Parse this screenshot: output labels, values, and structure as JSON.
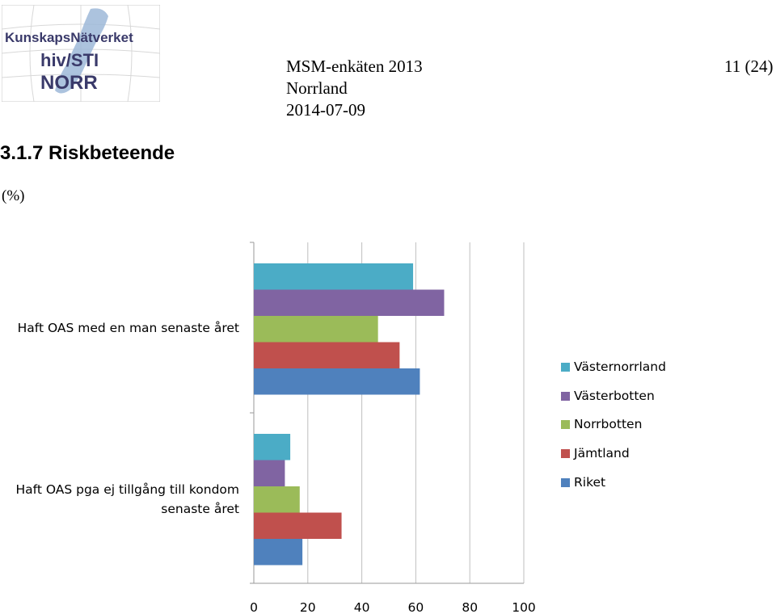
{
  "logo": {
    "line1": "KunskapsNätverket",
    "line2": "hiv/STI",
    "line3": "NORR"
  },
  "header": {
    "title": "MSM-enkäten 2013",
    "region": "Norrland",
    "date": "2014-07-09",
    "page": "11 (24)"
  },
  "section": {
    "title": "3.1.7  Riskbeteende",
    "unit": "(%)"
  },
  "chart_data": {
    "type": "bar",
    "orientation": "horizontal",
    "categories": [
      "Haft OAS med en man senaste året",
      "Haft OAS pga ej tillgång till kondom senaste året"
    ],
    "series": [
      {
        "name": "Västernorrland",
        "color": "#4BACC6",
        "values": [
          59,
          13.5
        ]
      },
      {
        "name": "Västerbotten",
        "color": "#8064A2",
        "values": [
          70.5,
          11.5
        ]
      },
      {
        "name": "Norrbotten",
        "color": "#9BBB59",
        "values": [
          46,
          17
        ]
      },
      {
        "name": "Jämtland",
        "color": "#C0504D",
        "values": [
          54,
          32.5
        ]
      },
      {
        "name": "Riket",
        "color": "#4F81BD",
        "values": [
          61.5,
          18
        ]
      }
    ],
    "xlim": [
      0,
      100
    ],
    "xticks": [
      "0",
      "20",
      "40",
      "60",
      "80",
      "100"
    ],
    "grid": "vertical",
    "legend_position": "right"
  }
}
